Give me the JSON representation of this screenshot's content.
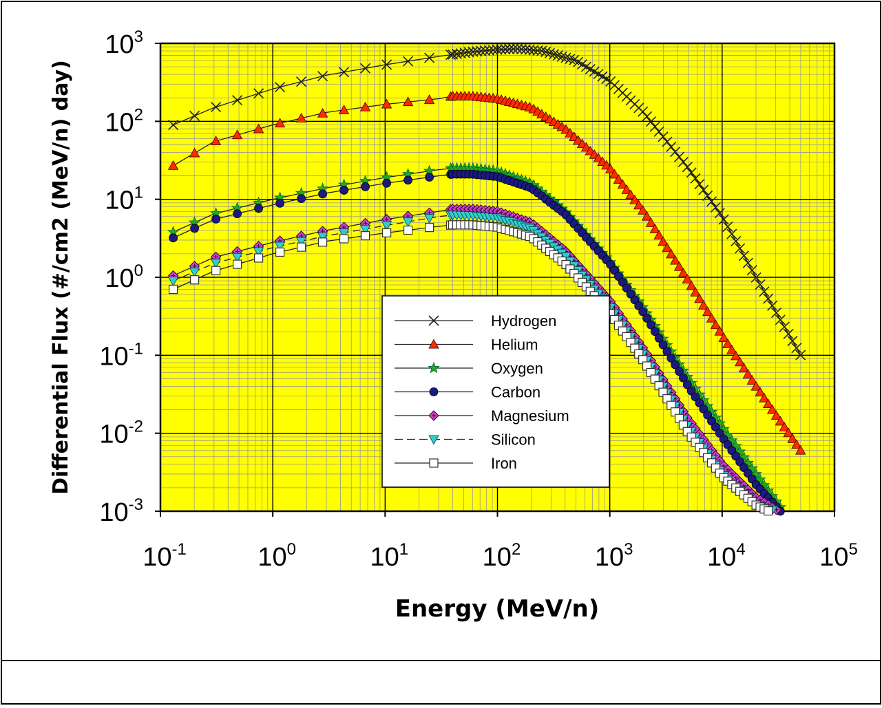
{
  "chart_data": {
    "type": "line",
    "title": "",
    "xlabel": "Energy (MeV/n)",
    "ylabel": "Differential Flux (#/cm2 (MeV/n) day)",
    "x_scale": "log",
    "y_scale": "log",
    "xlim": [
      0.1,
      100000
    ],
    "ylim": [
      0.001,
      1000
    ],
    "x_ticks": [
      {
        "base": "10",
        "exp": "-1"
      },
      {
        "base": "10",
        "exp": "0"
      },
      {
        "base": "10",
        "exp": "1"
      },
      {
        "base": "10",
        "exp": "2"
      },
      {
        "base": "10",
        "exp": "3"
      },
      {
        "base": "10",
        "exp": "4"
      },
      {
        "base": "10",
        "exp": "5"
      }
    ],
    "y_ticks": [
      {
        "base": "10",
        "exp": "3"
      },
      {
        "base": "10",
        "exp": "2"
      },
      {
        "base": "10",
        "exp": "1"
      },
      {
        "base": "10",
        "exp": "0"
      },
      {
        "base": "10",
        "exp": "-1"
      },
      {
        "base": "10",
        "exp": "-2"
      },
      {
        "base": "10",
        "exp": "-3"
      }
    ],
    "grid": true,
    "plot_background": "#ffff00",
    "legend_position": "center-right",
    "series": [
      {
        "name": "Hydrogen",
        "marker": "x",
        "color": "#333333",
        "dashed": false,
        "x": [
          0.13,
          0.3,
          1,
          3,
          10,
          30,
          60,
          100,
          150,
          250,
          500,
          1000,
          2000,
          5000,
          10000,
          20000,
          50000
        ],
        "y": [
          90,
          150,
          260,
          390,
          530,
          680,
          780,
          830,
          850,
          800,
          600,
          330,
          130,
          25,
          6,
          1,
          0.1
        ]
      },
      {
        "name": "Helium",
        "marker": "triangle",
        "color": "#ff2a00",
        "dashed": false,
        "x": [
          0.13,
          0.3,
          1,
          3,
          10,
          30,
          40,
          60,
          100,
          200,
          400,
          1000,
          2000,
          5000,
          10000,
          20000,
          50000
        ],
        "y": [
          27,
          55,
          90,
          130,
          165,
          195,
          210,
          210,
          195,
          150,
          80,
          25,
          7,
          0.9,
          0.18,
          0.04,
          0.006
        ]
      },
      {
        "name": "Oxygen",
        "marker": "star",
        "color": "#22aa22",
        "dashed": false,
        "x": [
          0.13,
          0.3,
          1,
          3,
          10,
          30,
          40,
          60,
          100,
          200,
          400,
          1000,
          2000,
          5000,
          10000,
          20000,
          35000
        ],
        "y": [
          3.8,
          6.5,
          10,
          14,
          19,
          24,
          25,
          25,
          23,
          16,
          7,
          1.6,
          0.4,
          0.05,
          0.012,
          0.003,
          0.001
        ]
      },
      {
        "name": "Carbon",
        "marker": "circle",
        "color": "#1a1a80",
        "dashed": false,
        "x": [
          0.13,
          0.3,
          1,
          3,
          10,
          30,
          40,
          60,
          100,
          200,
          400,
          1000,
          2000,
          5000,
          10000,
          20000,
          33000
        ],
        "y": [
          3.2,
          5.5,
          8.5,
          12,
          16,
          20,
          21,
          21,
          19.5,
          14,
          6.5,
          1.5,
          0.35,
          0.04,
          0.009,
          0.0022,
          0.001
        ]
      },
      {
        "name": "Magnesium",
        "marker": "diamond",
        "color": "#cc44cc",
        "dashed": false,
        "x": [
          0.13,
          0.3,
          1,
          3,
          10,
          30,
          40,
          60,
          100,
          200,
          400,
          1000,
          2000,
          5000,
          10000,
          20000,
          32000
        ],
        "y": [
          1.05,
          1.8,
          2.8,
          4,
          5.5,
          7,
          7.5,
          7.5,
          7,
          5,
          2.2,
          0.5,
          0.12,
          0.015,
          0.004,
          0.0015,
          0.001
        ]
      },
      {
        "name": "Silicon",
        "marker": "triangle-down",
        "color": "#33cccc",
        "dashed": true,
        "x": [
          0.13,
          0.3,
          1,
          3,
          10,
          30,
          40,
          60,
          100,
          200,
          400,
          1000,
          2000,
          5000,
          10000,
          20000,
          30000
        ],
        "y": [
          0.9,
          1.5,
          2.4,
          3.4,
          4.6,
          6,
          6.3,
          6.2,
          5.8,
          4.2,
          1.9,
          0.42,
          0.1,
          0.012,
          0.003,
          0.0012,
          0.001
        ]
      },
      {
        "name": "Iron",
        "marker": "square",
        "color": "#ffffff",
        "dashed": false,
        "x": [
          0.13,
          0.3,
          1,
          3,
          10,
          30,
          40,
          60,
          100,
          200,
          400,
          1000,
          2000,
          5000,
          10000,
          20000,
          26000
        ],
        "y": [
          0.7,
          1.2,
          2,
          2.9,
          3.7,
          4.5,
          4.7,
          4.7,
          4.4,
          3.3,
          1.5,
          0.35,
          0.085,
          0.01,
          0.0028,
          0.0012,
          0.001
        ]
      }
    ]
  }
}
